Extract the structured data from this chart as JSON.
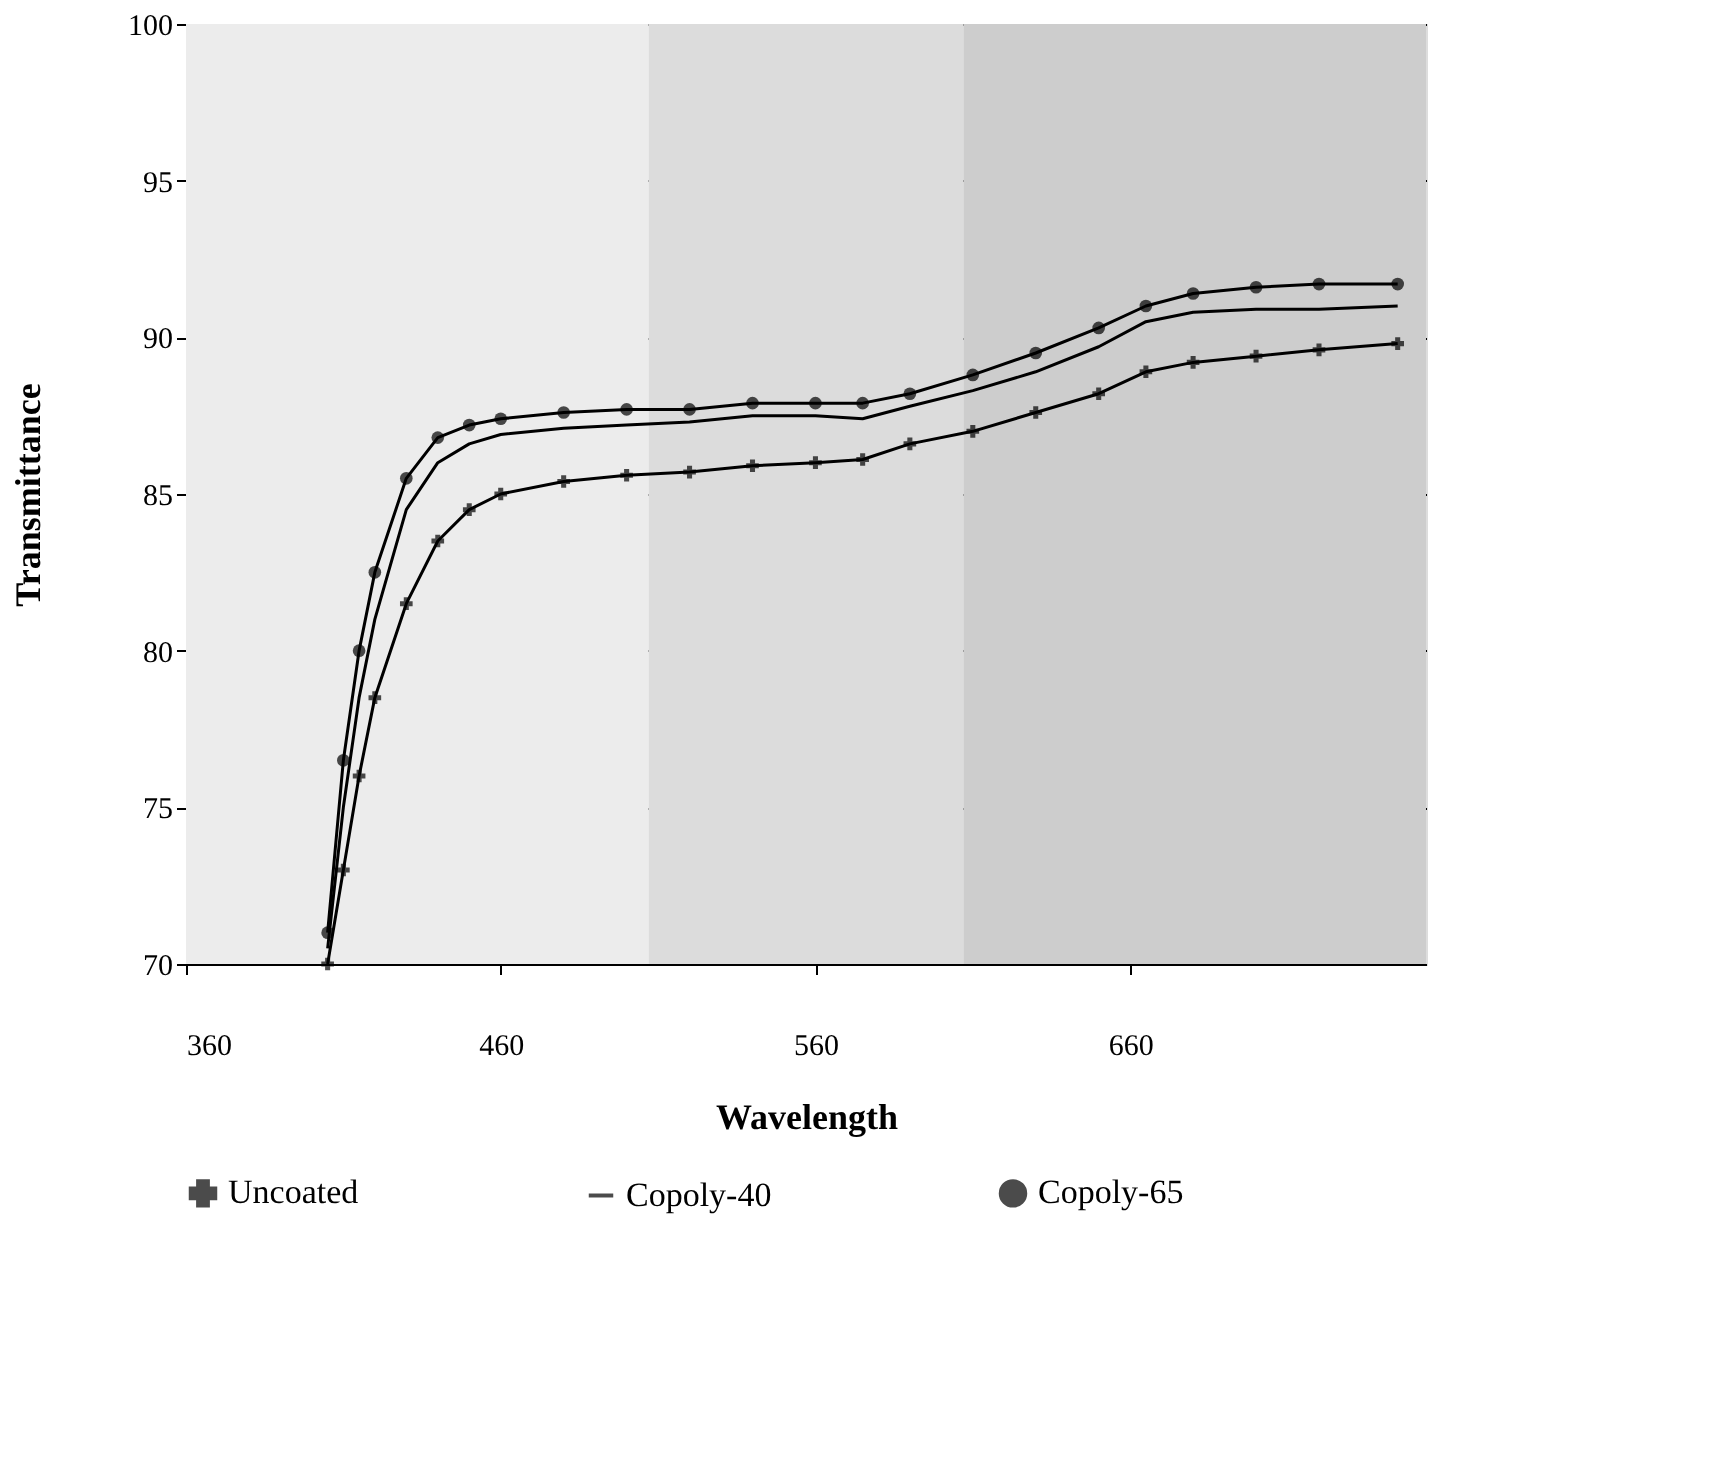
{
  "chart_data": {
    "type": "line",
    "xlabel": "Wavelength",
    "ylabel": "Transmittance",
    "x": [
      405,
      410,
      415,
      420,
      430,
      440,
      450,
      460,
      480,
      500,
      520,
      540,
      560,
      575,
      590,
      610,
      630,
      650,
      665,
      680,
      700,
      720,
      745
    ],
    "series": [
      {
        "name": "Uncoated",
        "color": "#000000",
        "marker": "cross",
        "values": [
          70,
          73,
          76,
          78.5,
          81.5,
          83.5,
          84.5,
          85,
          85.4,
          85.6,
          85.7,
          85.9,
          86,
          86.1,
          86.6,
          87,
          87.6,
          88.2,
          88.9,
          89.2,
          89.4,
          89.6,
          89.8
        ]
      },
      {
        "name": "Copoly-40",
        "color": "#000000",
        "marker": "none",
        "values": [
          70.5,
          75,
          78.5,
          81,
          84.5,
          86,
          86.6,
          86.9,
          87.1,
          87.2,
          87.3,
          87.5,
          87.5,
          87.4,
          87.8,
          88.3,
          88.9,
          89.7,
          90.5,
          90.8,
          90.9,
          90.9,
          91
        ]
      },
      {
        "name": "Copoly-65",
        "color": "#000000",
        "marker": "circle",
        "values": [
          71,
          76.5,
          80,
          82.5,
          85.5,
          86.8,
          87.2,
          87.4,
          87.6,
          87.7,
          87.7,
          87.9,
          87.9,
          87.9,
          88.2,
          88.8,
          89.5,
          90.3,
          91,
          91.4,
          91.6,
          91.7,
          91.7
        ]
      }
    ],
    "xlim": [
      360,
      754
    ],
    "xticks": [
      360,
      460,
      560,
      660
    ],
    "ylim": [
      70,
      100
    ],
    "yticks": [
      70,
      75,
      80,
      85,
      90,
      95,
      100
    ],
    "bands": [
      {
        "axis": "x",
        "from": 360,
        "to": 507,
        "color": "#ececec"
      },
      {
        "axis": "x",
        "from": 507,
        "to": 607,
        "color": "#dcdcdc"
      },
      {
        "axis": "x",
        "from": 607,
        "to": 754,
        "color": "#cdcdcd"
      }
    ],
    "grid": "y",
    "legend": "bottom",
    "line_style": "solid"
  }
}
